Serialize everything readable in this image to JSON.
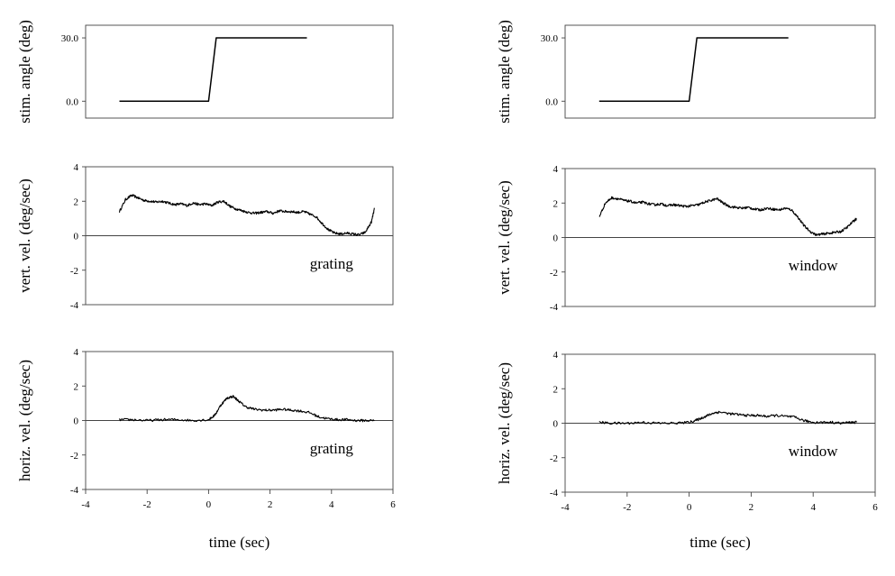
{
  "chart_data": [
    {
      "type": "line",
      "column": "left",
      "ylabel": "stim. angle (deg)",
      "xlim": [
        -4,
        6
      ],
      "ylim": [
        -8,
        36
      ],
      "yticks": [
        0,
        30
      ],
      "ytick_labels": [
        "0.0",
        "30.0"
      ],
      "show_x_axis": false,
      "zero_line": false,
      "annotation": "",
      "series": [
        {
          "x": [
            -2.9,
            0.0,
            0.25,
            3.2
          ],
          "y": [
            0,
            0,
            30,
            30
          ]
        }
      ]
    },
    {
      "type": "line",
      "column": "left",
      "ylabel": "vert. vel. (deg/sec)",
      "xlim": [
        -4,
        6
      ],
      "ylim": [
        -4,
        4
      ],
      "yticks": [
        -4,
        -2,
        0,
        2,
        4
      ],
      "ytick_labels": [
        "-4",
        "-2",
        "0",
        "2",
        "4"
      ],
      "show_x_axis": false,
      "zero_line": true,
      "annotation": "grating",
      "series": [
        {
          "x": [
            -2.9,
            -2.7,
            -2.5,
            -2.3,
            -2.1,
            -1.9,
            -1.7,
            -1.5,
            -1.3,
            -1.1,
            -0.9,
            -0.7,
            -0.5,
            -0.3,
            -0.1,
            0.1,
            0.3,
            0.5,
            0.7,
            0.9,
            1.1,
            1.3,
            1.5,
            1.7,
            1.9,
            2.1,
            2.3,
            2.5,
            2.7,
            2.9,
            3.1,
            3.3,
            3.5,
            3.7,
            3.9,
            4.1,
            4.3,
            4.5,
            4.7,
            4.9,
            5.1,
            5.3,
            5.4
          ],
          "y": [
            1.4,
            2.1,
            2.35,
            2.2,
            2.05,
            2.0,
            1.95,
            2.0,
            1.9,
            1.8,
            1.85,
            1.75,
            1.9,
            1.8,
            1.85,
            1.75,
            1.95,
            2.0,
            1.7,
            1.55,
            1.45,
            1.35,
            1.3,
            1.35,
            1.4,
            1.3,
            1.45,
            1.4,
            1.4,
            1.35,
            1.4,
            1.25,
            1.1,
            0.7,
            0.35,
            0.15,
            0.1,
            0.15,
            0.1,
            0.05,
            0.2,
            0.8,
            1.6
          ]
        }
      ]
    },
    {
      "type": "line",
      "column": "left",
      "ylabel": "horiz. vel. (deg/sec)",
      "xlabel": "time (sec)",
      "xlim": [
        -4,
        6
      ],
      "xticks": [
        -4,
        -2,
        0,
        2,
        4,
        6
      ],
      "xtick_labels": [
        "-4",
        "-2",
        "0",
        "2",
        "4",
        "6"
      ],
      "ylim": [
        -4,
        4
      ],
      "yticks": [
        -4,
        -2,
        0,
        2,
        4
      ],
      "ytick_labels": [
        "-4",
        "-2",
        "0",
        "2",
        "4"
      ],
      "show_x_axis": true,
      "zero_line": true,
      "annotation": "grating",
      "series": [
        {
          "x": [
            -2.9,
            -2.5,
            -2.0,
            -1.5,
            -1.0,
            -0.5,
            0.0,
            0.2,
            0.4,
            0.6,
            0.8,
            1.0,
            1.2,
            1.5,
            1.8,
            2.1,
            2.4,
            2.7,
            3.0,
            3.3,
            3.6,
            3.9,
            4.2,
            4.5,
            4.8,
            5.1,
            5.4
          ],
          "y": [
            0.05,
            0.05,
            0.0,
            0.05,
            0.05,
            0.0,
            0.05,
            0.3,
            0.9,
            1.3,
            1.4,
            1.1,
            0.8,
            0.65,
            0.6,
            0.6,
            0.65,
            0.6,
            0.55,
            0.45,
            0.2,
            0.1,
            0.05,
            0.05,
            0.0,
            0.0,
            0.0
          ]
        }
      ]
    },
    {
      "type": "line",
      "column": "right",
      "ylabel": "stim. angle (deg)",
      "xlim": [
        -4,
        6
      ],
      "ylim": [
        -8,
        36
      ],
      "yticks": [
        0,
        30
      ],
      "ytick_labels": [
        "0.0",
        "30.0"
      ],
      "show_x_axis": false,
      "zero_line": false,
      "annotation": "",
      "series": [
        {
          "x": [
            -2.9,
            0.0,
            0.25,
            3.2
          ],
          "y": [
            0,
            0,
            30,
            30
          ]
        }
      ]
    },
    {
      "type": "line",
      "column": "right",
      "ylabel": "vert. vel. (deg/sec)",
      "xlim": [
        -4,
        6
      ],
      "ylim": [
        -4,
        4
      ],
      "yticks": [
        -4,
        -2,
        0,
        2,
        4
      ],
      "ytick_labels": [
        "-4",
        "-2",
        "0",
        "2",
        "4"
      ],
      "show_x_axis": false,
      "zero_line": true,
      "annotation": "window",
      "series": [
        {
          "x": [
            -2.9,
            -2.7,
            -2.5,
            -2.3,
            -2.1,
            -1.9,
            -1.7,
            -1.5,
            -1.3,
            -1.1,
            -0.9,
            -0.7,
            -0.5,
            -0.3,
            -0.1,
            0.1,
            0.3,
            0.5,
            0.7,
            0.9,
            1.1,
            1.3,
            1.5,
            1.7,
            1.9,
            2.1,
            2.3,
            2.5,
            2.7,
            2.9,
            3.1,
            3.3,
            3.5,
            3.7,
            3.9,
            4.1,
            4.3,
            4.5,
            4.7,
            4.9,
            5.1,
            5.3,
            5.4
          ],
          "y": [
            1.2,
            2.0,
            2.3,
            2.25,
            2.15,
            2.1,
            2.0,
            2.05,
            1.95,
            1.9,
            1.95,
            1.85,
            1.9,
            1.85,
            1.8,
            1.85,
            1.9,
            2.05,
            2.15,
            2.25,
            2.0,
            1.8,
            1.75,
            1.7,
            1.75,
            1.65,
            1.6,
            1.7,
            1.65,
            1.6,
            1.7,
            1.6,
            1.2,
            0.7,
            0.35,
            0.15,
            0.2,
            0.25,
            0.3,
            0.35,
            0.6,
            0.95,
            1.1
          ]
        }
      ]
    },
    {
      "type": "line",
      "column": "right",
      "ylabel": "horiz. vel. (deg/sec)",
      "xlabel": "time (sec)",
      "xlim": [
        -4,
        6
      ],
      "xticks": [
        -4,
        -2,
        0,
        2,
        4,
        6
      ],
      "xtick_labels": [
        "-4",
        "-2",
        "0",
        "2",
        "4",
        "6"
      ],
      "ylim": [
        -4,
        4
      ],
      "yticks": [
        -4,
        -2,
        0,
        2,
        4
      ],
      "ytick_labels": [
        "-4",
        "-2",
        "0",
        "2",
        "4"
      ],
      "show_x_axis": true,
      "zero_line": true,
      "annotation": "window",
      "series": [
        {
          "x": [
            -2.9,
            -2.5,
            -2.0,
            -1.5,
            -1.0,
            -0.5,
            0.0,
            0.2,
            0.4,
            0.6,
            0.8,
            1.0,
            1.3,
            1.6,
            1.9,
            2.2,
            2.5,
            2.8,
            3.1,
            3.4,
            3.7,
            4.0,
            4.3,
            4.6,
            4.9,
            5.2,
            5.4
          ],
          "y": [
            0.05,
            0.0,
            0.0,
            0.05,
            0.0,
            0.0,
            0.05,
            0.15,
            0.3,
            0.45,
            0.6,
            0.65,
            0.55,
            0.5,
            0.45,
            0.45,
            0.4,
            0.45,
            0.4,
            0.35,
            0.15,
            0.05,
            0.05,
            0.05,
            0.0,
            0.05,
            0.05
          ]
        }
      ]
    }
  ]
}
